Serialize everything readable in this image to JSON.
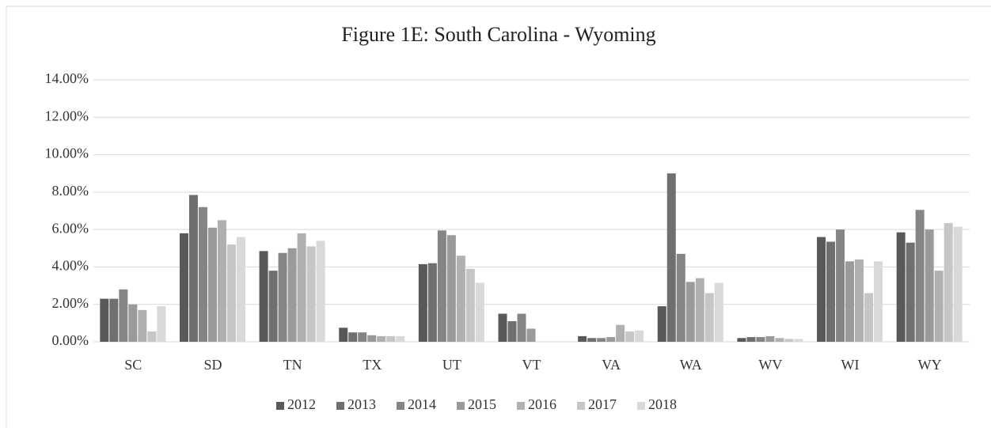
{
  "chart_data": {
    "type": "bar",
    "title": "Figure 1E: South Carolina - Wyoming",
    "categories": [
      "SC",
      "SD",
      "TN",
      "TX",
      "UT",
      "VT",
      "VA",
      "WA",
      "WV",
      "WI",
      "WY"
    ],
    "series": [
      {
        "name": "2012",
        "color": "#595959",
        "values": [
          2.3,
          5.8,
          4.85,
          0.75,
          4.15,
          1.5,
          0.3,
          1.9,
          0.2,
          5.6,
          5.85
        ]
      },
      {
        "name": "2013",
        "color": "#6f6f6f",
        "values": [
          2.3,
          7.85,
          3.8,
          0.5,
          4.2,
          1.1,
          0.2,
          9.0,
          0.25,
          5.35,
          5.3
        ]
      },
      {
        "name": "2014",
        "color": "#858585",
        "values": [
          2.8,
          7.2,
          4.75,
          0.5,
          5.95,
          1.5,
          0.2,
          4.7,
          0.25,
          6.0,
          7.05
        ]
      },
      {
        "name": "2015",
        "color": "#9a9a9a",
        "values": [
          2.0,
          6.1,
          5.0,
          0.35,
          5.7,
          0.7,
          0.25,
          3.2,
          0.3,
          4.3,
          6.0
        ]
      },
      {
        "name": "2016",
        "color": "#b0b0b0",
        "values": [
          1.7,
          6.5,
          5.8,
          0.3,
          4.6,
          0,
          0.9,
          3.4,
          0.2,
          4.4,
          3.8
        ]
      },
      {
        "name": "2017",
        "color": "#c6c6c6",
        "values": [
          0.55,
          5.2,
          5.1,
          0.3,
          3.9,
          0,
          0.55,
          2.6,
          0.15,
          2.6,
          6.35
        ]
      },
      {
        "name": "2018",
        "color": "#d9d9d9",
        "values": [
          1.9,
          5.6,
          5.4,
          0.3,
          3.15,
          0,
          0.6,
          3.15,
          0.15,
          4.3,
          6.15
        ]
      }
    ],
    "ylim": [
      0,
      14
    ],
    "yticks": [
      {
        "value": 0,
        "label": "0.00%"
      },
      {
        "value": 2,
        "label": "2.00%"
      },
      {
        "value": 4,
        "label": "4.00%"
      },
      {
        "value": 6,
        "label": "6.00%"
      },
      {
        "value": 8,
        "label": "8.00%"
      },
      {
        "value": 10,
        "label": "10.00%"
      },
      {
        "value": 12,
        "label": "12.00%"
      },
      {
        "value": 14,
        "label": "14.00%"
      }
    ],
    "grid": true,
    "legend": "bottom"
  }
}
